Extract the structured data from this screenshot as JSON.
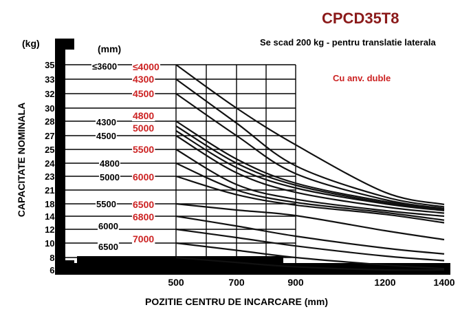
{
  "chart_data": {
    "type": "line",
    "title": "CPCD35T8",
    "note": "Se scad 200 kg - pentru translatie  laterala",
    "variant": "Cu anv. duble",
    "ylabel": "CAPACITATE NOMINALA",
    "yunit": "(kg)",
    "xlabel": "POZITIE CENTRU DE INCARCARE (mm)",
    "height_unit": "(mm)",
    "y_ticks": [
      "3500",
      "3350",
      "3200",
      "3000",
      "2850",
      "2700",
      "2550",
      "2450",
      "2300",
      "2100",
      "1800",
      "1400",
      "1200",
      "1000",
      "800",
      "600"
    ],
    "x_ticks": [
      "500",
      "700",
      "900",
      "1200",
      "1400"
    ],
    "x_tick_values": [
      500,
      700,
      900,
      1200,
      1400
    ],
    "xlim": [
      500,
      1400
    ],
    "grid": true,
    "height_labels": [
      {
        "text": "≤3600",
        "color": "black",
        "level": "3500"
      },
      {
        "text": "≤4000",
        "color": "red",
        "level": "3500"
      },
      {
        "text": "4300",
        "color": "red",
        "level": "3350"
      },
      {
        "text": "4500",
        "color": "red",
        "level": "3200"
      },
      {
        "text": "4800",
        "color": "red",
        "level": "2850"
      },
      {
        "text": "4300",
        "color": "black",
        "level": "2850"
      },
      {
        "text": "5000",
        "color": "red",
        "level": "2850"
      },
      {
        "text": "4500",
        "color": "black",
        "level": "2700"
      },
      {
        "text": "5500",
        "color": "red",
        "level": "2550"
      },
      {
        "text": "4800",
        "color": "black",
        "level": "2450"
      },
      {
        "text": "5000",
        "color": "black",
        "level": "2300"
      },
      {
        "text": "6000",
        "color": "red",
        "level": "2300"
      },
      {
        "text": "5500",
        "color": "black",
        "level": "1800"
      },
      {
        "text": "6500",
        "color": "red",
        "level": "1800"
      },
      {
        "text": "6800",
        "color": "red",
        "level": "1400"
      },
      {
        "text": "6000",
        "color": "black",
        "level": "1200"
      },
      {
        "text": "7000",
        "color": "red",
        "level": "1000"
      },
      {
        "text": "6500",
        "color": "black",
        "level": "800"
      }
    ],
    "series": [
      {
        "x": [
          500,
          700,
          900,
          1200,
          1400
        ],
        "y": [
          3500,
          3000,
          2600,
          2050,
          1780
        ]
      },
      {
        "x": [
          500,
          700,
          900,
          1200,
          1400
        ],
        "y": [
          3350,
          2830,
          2420,
          1950,
          1700
        ]
      },
      {
        "x": [
          500,
          700,
          900,
          1200,
          1400
        ],
        "y": [
          3200,
          2700,
          2330,
          1890,
          1650
        ]
      },
      {
        "x": [
          500,
          700,
          900,
          1200,
          1400
        ],
        "y": [
          2850,
          2480,
          2200,
          1850,
          1620
        ]
      },
      {
        "x": [
          500,
          700,
          900,
          1200,
          1400
        ],
        "y": [
          2800,
          2450,
          2170,
          1820,
          1600
        ]
      },
      {
        "x": [
          500,
          700,
          900,
          1200,
          1400
        ],
        "y": [
          2750,
          2400,
          2130,
          1800,
          1580
        ]
      },
      {
        "x": [
          500,
          700,
          900,
          1200,
          1400
        ],
        "y": [
          2700,
          2340,
          2050,
          1700,
          1500
        ]
      },
      {
        "x": [
          500,
          700,
          900,
          1200,
          1400
        ],
        "y": [
          2550,
          2180,
          1900,
          1580,
          1400
        ]
      },
      {
        "x": [
          500,
          700,
          900,
          1200,
          1400
        ],
        "y": [
          2450,
          2100,
          1830,
          1520,
          1340
        ]
      },
      {
        "x": [
          500,
          700,
          900,
          1200,
          1400
        ],
        "y": [
          2300,
          2000,
          1760,
          1460,
          1300
        ]
      },
      {
        "x": [
          500,
          700,
          900,
          1200,
          1400
        ],
        "y": [
          1800,
          1600,
          1420,
          1180,
          1050
        ]
      },
      {
        "x": [
          500,
          700,
          900,
          1200,
          1400
        ],
        "y": [
          1400,
          1250,
          1100,
          930,
          850
        ]
      },
      {
        "x": [
          500,
          700,
          900,
          1200,
          1400
        ],
        "y": [
          1200,
          1080,
          960,
          820,
          750
        ]
      },
      {
        "x": [
          500,
          700,
          900,
          1200,
          1400
        ],
        "y": [
          1000,
          900,
          800,
          680,
          620
        ]
      },
      {
        "x": [
          500,
          700,
          900,
          1200,
          1400
        ],
        "y": [
          800,
          720,
          650,
          600,
          600
        ]
      }
    ]
  }
}
